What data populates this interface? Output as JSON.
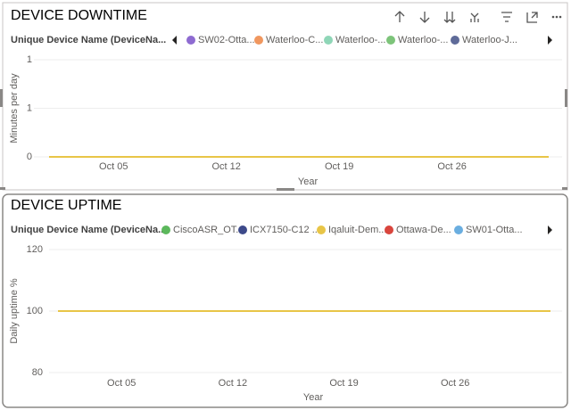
{
  "chart_data": [
    {
      "type": "line",
      "title": "DEVICE DOWNTIME",
      "legend_title": "Unique Device Name (DeviceNa...",
      "legend": [
        {
          "name": "SW02-Otta...",
          "color": "#8e6bd1"
        },
        {
          "name": "Waterloo-C...",
          "color": "#f0975f"
        },
        {
          "name": "Waterloo-...",
          "color": "#8fd6b7"
        },
        {
          "name": "Waterloo-...",
          "color": "#7dc47a"
        },
        {
          "name": "Waterloo-J...",
          "color": "#5f6b99"
        }
      ],
      "series": [
        {
          "color": "#e8c547",
          "x": [
            1,
            32
          ],
          "values": [
            0,
            0
          ]
        }
      ],
      "x_label": "Year",
      "y_label": "Minutes per day",
      "xlim": [
        1,
        32
      ],
      "xticks": [
        {
          "value": 5,
          "label": "Oct 05"
        },
        {
          "value": 12,
          "label": "Oct 12"
        },
        {
          "value": 19,
          "label": "Oct 19"
        },
        {
          "value": 26,
          "label": "Oct 26"
        }
      ],
      "ylim": [
        0,
        1
      ],
      "yticks": [
        0,
        {
          "value": 0.5,
          "label": "1"
        },
        1
      ],
      "grid": true
    },
    {
      "type": "line",
      "title": "DEVICE UPTIME",
      "legend_title": "Unique Device Name (DeviceNa...",
      "legend": [
        {
          "name": "CiscoASR_OT...",
          "color": "#5cb85c"
        },
        {
          "name": "ICX7150-C12 ...",
          "color": "#3d4a8a"
        },
        {
          "name": "Iqaluit-Dem...",
          "color": "#e8c547"
        },
        {
          "name": "Ottawa-De...",
          "color": "#d9453d"
        },
        {
          "name": "SW01-Otta...",
          "color": "#6aaee0"
        }
      ],
      "series": [
        {
          "color": "#e8c547",
          "x": [
            1,
            32
          ],
          "values": [
            100,
            100
          ]
        }
      ],
      "x_label": "Year",
      "y_label": "Daily uptime %",
      "xlim": [
        1,
        32
      ],
      "xticks": [
        {
          "value": 5,
          "label": "Oct 05"
        },
        {
          "value": 12,
          "label": "Oct 12"
        },
        {
          "value": 19,
          "label": "Oct 19"
        },
        {
          "value": 26,
          "label": "Oct 26"
        }
      ],
      "ylim": [
        80,
        120
      ],
      "yticks": [
        80,
        100,
        120
      ],
      "grid": true
    }
  ]
}
